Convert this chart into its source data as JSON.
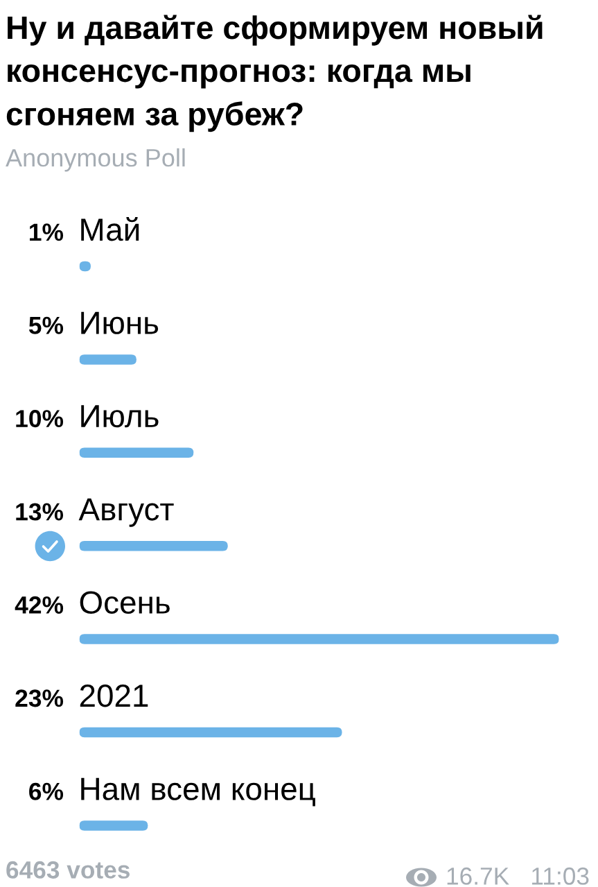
{
  "chart_data": {
    "type": "bar",
    "orientation": "horizontal",
    "title": "Ну и давайте сформируем новый\nконсенсус-прогноз: когда мы\nсгоняем за рубеж?",
    "subtitle": "Anonymous Poll",
    "categories": [
      "Май",
      "Июнь",
      "Июль",
      "Август",
      "Осень",
      "2021",
      "Нам всем конец"
    ],
    "values": [
      1,
      5,
      10,
      13,
      42,
      23,
      6
    ],
    "value_labels": [
      "1%",
      "5%",
      "10%",
      "13%",
      "42%",
      "23%",
      "6%"
    ],
    "color": "#6bb3e7",
    "tick_labels": "y",
    "annotations": [
      "6463 votes",
      "16.7K",
      "11:03"
    ]
  }
}
